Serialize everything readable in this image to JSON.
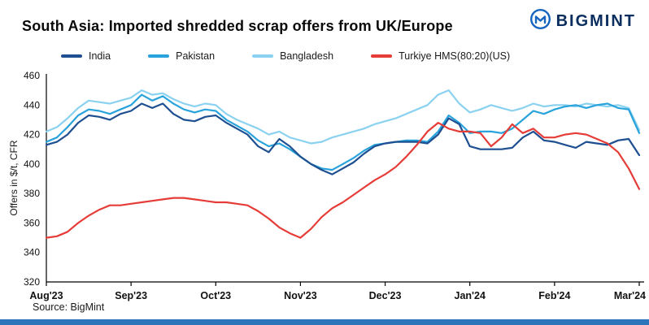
{
  "header": {
    "title": "South Asia: Imported shredded scrap offers from UK/Europe",
    "logo_text": "BIGMINT"
  },
  "source_note": "Source: BigMint",
  "colors": {
    "logo_icon": "#1565c0",
    "logo_text": "#0b2e5f",
    "axis": "#000000",
    "footer_bar": "#2d75bb"
  },
  "chart_data": {
    "type": "line",
    "title": "South Asia: Imported shredded scrap offers from UK/Europe",
    "xlabel": "",
    "ylabel": "Offers in $/t, CFR",
    "ylim": [
      320,
      460
    ],
    "ytick_step": 20,
    "grid": false,
    "legend_position": "top",
    "x_tick_labels": [
      "Aug'23",
      "Sep'23",
      "Oct'23",
      "Nov'23",
      "Dec'23",
      "Jan'24",
      "Feb'24",
      "Mar'24"
    ],
    "points_per_month": 8,
    "series": [
      {
        "name": "India",
        "color": "#1d4f91",
        "values": [
          413,
          415,
          420,
          428,
          433,
          432,
          430,
          434,
          436,
          441,
          438,
          441,
          434,
          430,
          429,
          432,
          433,
          428,
          424,
          420,
          412,
          408,
          417,
          412,
          405,
          400,
          396,
          393,
          397,
          401,
          407,
          412,
          414,
          415,
          415,
          415,
          414,
          420,
          431,
          427,
          412,
          410,
          410,
          410,
          411,
          418,
          422,
          416,
          415,
          413,
          411,
          415,
          414,
          413,
          416,
          417,
          406
        ]
      },
      {
        "name": "Pakistan",
        "color": "#29a3dc",
        "values": [
          415,
          418,
          425,
          433,
          437,
          436,
          434,
          437,
          440,
          447,
          443,
          446,
          441,
          437,
          435,
          437,
          436,
          430,
          426,
          422,
          416,
          412,
          414,
          410,
          405,
          400,
          397,
          396,
          400,
          404,
          409,
          413,
          414,
          415,
          416,
          416,
          415,
          422,
          433,
          428,
          421,
          422,
          422,
          421,
          424,
          430,
          436,
          434,
          437,
          439,
          440,
          438,
          440,
          441,
          438,
          437,
          421
        ]
      },
      {
        "name": "Bangladesh",
        "color": "#8bd1f0",
        "values": [
          422,
          425,
          431,
          438,
          443,
          442,
          441,
          443,
          445,
          450,
          447,
          448,
          444,
          441,
          439,
          441,
          440,
          434,
          430,
          427,
          424,
          420,
          422,
          418,
          416,
          414,
          415,
          418,
          420,
          422,
          424,
          427,
          429,
          431,
          434,
          437,
          440,
          447,
          450,
          441,
          435,
          437,
          440,
          438,
          436,
          438,
          441,
          439,
          440,
          440,
          439,
          441,
          440,
          439,
          440,
          438,
          423
        ]
      },
      {
        "name": "Turkiye HMS(80:20)(US)",
        "color": "#e63c38",
        "values": [
          350,
          351,
          354,
          360,
          365,
          369,
          372,
          372,
          373,
          374,
          375,
          376,
          377,
          377,
          376,
          375,
          374,
          374,
          373,
          372,
          368,
          363,
          357,
          353,
          350,
          356,
          364,
          370,
          374,
          379,
          384,
          389,
          393,
          398,
          405,
          413,
          422,
          428,
          424,
          422,
          422,
          421,
          412,
          418,
          427,
          421,
          424,
          418,
          418,
          420,
          421,
          420,
          417,
          414,
          408,
          397,
          383
        ]
      }
    ]
  }
}
